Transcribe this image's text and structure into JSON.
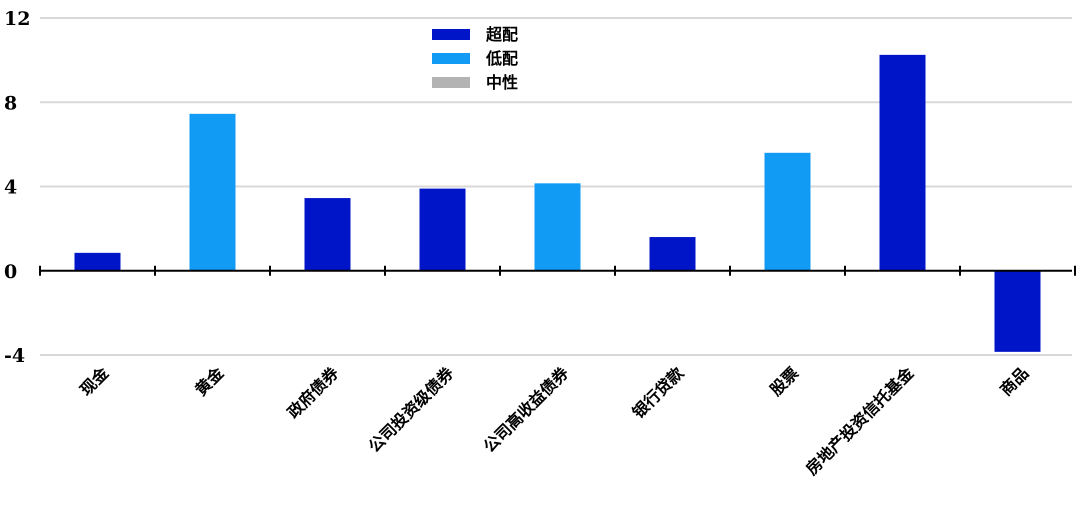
{
  "chart_data": {
    "type": "bar",
    "categories": [
      "现金",
      "黄金",
      "政府债券",
      "公司投资级债券",
      "公司高收益债券",
      "银行贷款",
      "股票",
      "房地产投资信托基金",
      "商品"
    ],
    "values": [
      0.85,
      7.45,
      3.45,
      3.9,
      4.15,
      1.6,
      5.6,
      10.25,
      -3.85
    ],
    "category_class": [
      "超配",
      "低配",
      "超配",
      "超配",
      "低配",
      "超配",
      "低配",
      "超配",
      "超配"
    ],
    "legend": [
      {
        "name": "超配",
        "color": "#0014c8"
      },
      {
        "name": "低配",
        "color": "#129bf5"
      },
      {
        "name": "中性",
        "color": "#b3b3b3"
      }
    ],
    "ylim": [
      -4,
      12
    ],
    "yticks": [
      12,
      8,
      4,
      0,
      -4
    ],
    "ytick_labels": [
      "12",
      "8",
      "4",
      "0",
      "-4"
    ],
    "title": "",
    "xlabel": "",
    "ylabel": "",
    "grid": true,
    "legend_position": "top-center"
  }
}
